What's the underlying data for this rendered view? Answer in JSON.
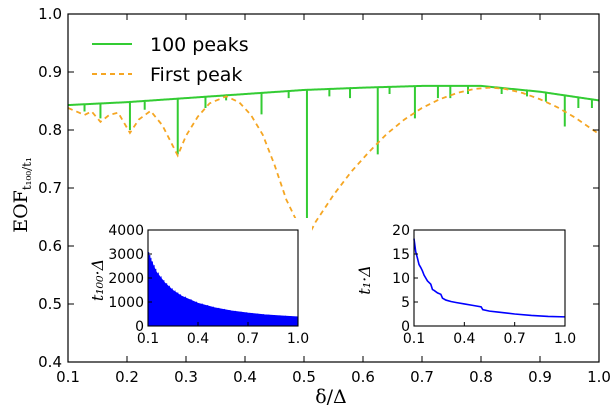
{
  "chart_data": [
    {
      "type": "line",
      "role": "main",
      "xlabel": "δ/Δ",
      "ylabel": "EOF",
      "ylabel_subscript": "t₁₀₀/t₁",
      "xlim": [
        0.1,
        1.0
      ],
      "ylim": [
        0.4,
        1.0
      ],
      "x_ticks": [
        "0.1",
        "0.2",
        "0.3",
        "0.4",
        "0.5",
        "0.6",
        "0.7",
        "0.8",
        "0.9",
        "1.0"
      ],
      "y_ticks": [
        "0.4",
        "0.5",
        "0.6",
        "0.7",
        "0.8",
        "0.9",
        "1.0"
      ],
      "legend_position": "top-left",
      "series": [
        {
          "name": "100 peaks",
          "color": "#33cc33",
          "style": "solid",
          "envelope_x": [
            0.1,
            0.2,
            0.3,
            0.4,
            0.5,
            0.6,
            0.7,
            0.8,
            0.9,
            1.0
          ],
          "envelope_y": [
            0.843,
            0.848,
            0.855,
            0.862,
            0.869,
            0.873,
            0.876,
            0.876,
            0.866,
            0.851
          ],
          "dips": [
            {
              "x": 0.128,
              "y": 0.832
            },
            {
              "x": 0.155,
              "y": 0.82
            },
            {
              "x": 0.205,
              "y": 0.8
            },
            {
              "x": 0.23,
              "y": 0.835
            },
            {
              "x": 0.286,
              "y": 0.758
            },
            {
              "x": 0.333,
              "y": 0.838
            },
            {
              "x": 0.368,
              "y": 0.851
            },
            {
              "x": 0.428,
              "y": 0.827
            },
            {
              "x": 0.474,
              "y": 0.855
            },
            {
              "x": 0.505,
              "y": 0.613
            },
            {
              "x": 0.543,
              "y": 0.858
            },
            {
              "x": 0.578,
              "y": 0.855
            },
            {
              "x": 0.625,
              "y": 0.758
            },
            {
              "x": 0.645,
              "y": 0.862
            },
            {
              "x": 0.688,
              "y": 0.82
            },
            {
              "x": 0.727,
              "y": 0.855
            },
            {
              "x": 0.748,
              "y": 0.855
            },
            {
              "x": 0.778,
              "y": 0.862
            },
            {
              "x": 0.835,
              "y": 0.862
            },
            {
              "x": 0.878,
              "y": 0.858
            },
            {
              "x": 0.91,
              "y": 0.849
            },
            {
              "x": 0.942,
              "y": 0.806
            },
            {
              "x": 0.965,
              "y": 0.838
            },
            {
              "x": 0.988,
              "y": 0.838
            }
          ]
        },
        {
          "name": "First peak",
          "color": "#f5a623",
          "style": "dashed",
          "x": [
            0.1,
            0.128,
            0.14,
            0.155,
            0.17,
            0.185,
            0.205,
            0.22,
            0.24,
            0.26,
            0.286,
            0.3,
            0.32,
            0.34,
            0.368,
            0.39,
            0.41,
            0.43,
            0.45,
            0.47,
            0.49,
            0.505,
            0.52,
            0.55,
            0.58,
            0.61,
            0.64,
            0.67,
            0.7,
            0.73,
            0.76,
            0.79,
            0.815,
            0.84,
            0.87,
            0.9,
            0.93,
            0.96,
            1.0
          ],
          "y": [
            0.838,
            0.826,
            0.832,
            0.814,
            0.826,
            0.83,
            0.795,
            0.818,
            0.833,
            0.808,
            0.756,
            0.79,
            0.823,
            0.846,
            0.858,
            0.848,
            0.826,
            0.792,
            0.74,
            0.68,
            0.638,
            0.613,
            0.642,
            0.688,
            0.728,
            0.762,
            0.793,
            0.818,
            0.838,
            0.853,
            0.864,
            0.871,
            0.873,
            0.871,
            0.864,
            0.853,
            0.839,
            0.821,
            0.793
          ]
        }
      ]
    },
    {
      "type": "area",
      "role": "inset-left",
      "ylabel": "t₁₀₀·Δ",
      "xlim": [
        0.1,
        1.0
      ],
      "ylim": [
        0,
        4000
      ],
      "x_ticks": [
        "0.1",
        "0.4",
        "0.7",
        "1.0"
      ],
      "y_ticks": [
        "0",
        "1000",
        "2000",
        "3000",
        "4000"
      ],
      "series": [
        {
          "color": "#0000ff",
          "x": [
            0.1,
            0.12,
            0.15,
            0.2,
            0.25,
            0.3,
            0.4,
            0.5,
            0.6,
            0.7,
            0.8,
            0.9,
            1.0
          ],
          "upper": [
            3050,
            2700,
            2250,
            1800,
            1480,
            1250,
            950,
            760,
            630,
            540,
            470,
            420,
            380
          ],
          "lower": [
            0,
            0,
            0,
            0,
            0,
            0,
            0,
            0,
            0,
            0,
            0,
            0,
            0
          ]
        }
      ]
    },
    {
      "type": "line",
      "role": "inset-right",
      "ylabel": "t₁·Δ",
      "xlim": [
        0.1,
        1.0
      ],
      "ylim": [
        0,
        20
      ],
      "x_ticks": [
        "0.1",
        "0.4",
        "0.7",
        "1.0"
      ],
      "y_ticks": [
        "0",
        "5",
        "10",
        "15",
        "20"
      ],
      "series": [
        {
          "color": "#0000ff",
          "x": [
            0.1,
            0.11,
            0.12,
            0.13,
            0.14,
            0.15,
            0.16,
            0.18,
            0.2,
            0.21,
            0.22,
            0.24,
            0.26,
            0.27,
            0.29,
            0.32,
            0.35,
            0.4,
            0.45,
            0.5,
            0.51,
            0.55,
            0.6,
            0.7,
            0.8,
            0.9,
            1.0
          ],
          "y": [
            18.2,
            15.5,
            14.2,
            12.8,
            12.2,
            11.5,
            10.6,
            9.4,
            8.7,
            7.6,
            7.4,
            6.9,
            6.6,
            5.8,
            5.4,
            5.1,
            4.9,
            4.6,
            4.3,
            4.0,
            3.4,
            3.1,
            2.9,
            2.5,
            2.2,
            2.0,
            1.9
          ]
        }
      ]
    }
  ]
}
